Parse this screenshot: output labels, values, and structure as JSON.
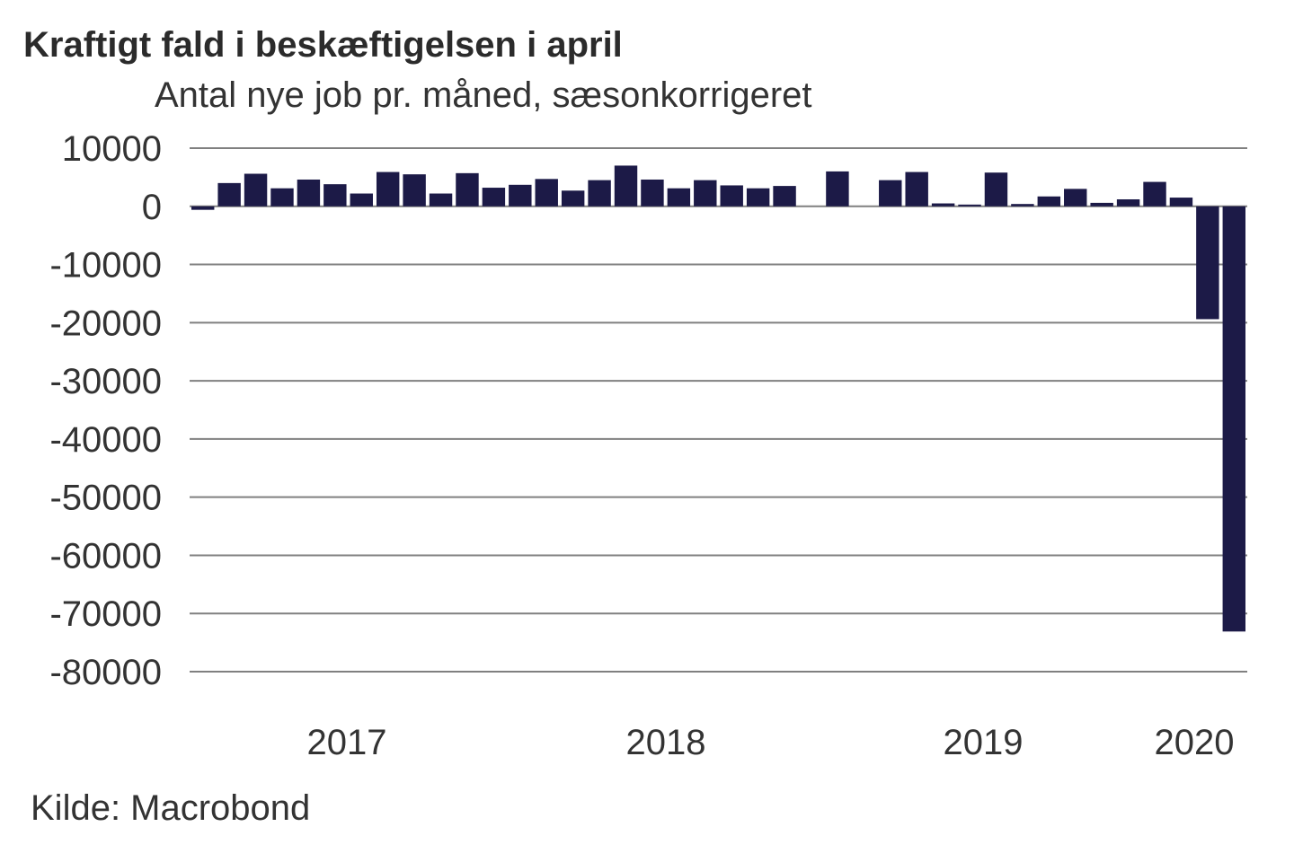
{
  "chart_data": {
    "type": "bar",
    "title": "Kraftigt fald i beskæftigelsen i april",
    "subtitle": "Antal nye job pr. måned, sæsonkorrigeret",
    "source": "Kilde: Macrobond",
    "ylim": [
      -80000,
      10000
    ],
    "yticks": [
      10000,
      0,
      -10000,
      -20000,
      -30000,
      -40000,
      -50000,
      -60000,
      -70000,
      -80000
    ],
    "ytick_labels": [
      "10000",
      "0",
      "-10000",
      "-20000",
      "-30000",
      "-40000",
      "-50000",
      "-60000",
      "-70000",
      "-80000"
    ],
    "x_tick_labels": [
      "2017",
      "2018",
      "2019",
      "2020"
    ],
    "grid": true,
    "bar_color": "#1c1a47",
    "grid_color": "#808080",
    "series": [
      {
        "values": [
          -600,
          4000,
          5600,
          3100,
          4600,
          3800,
          2200,
          5900,
          5500,
          2200,
          5700,
          3200,
          3700,
          4700,
          2700,
          4500,
          7000,
          4600,
          3100,
          4500,
          3600,
          3100,
          3500,
          0,
          6000,
          0,
          4500,
          5900,
          500,
          300,
          5800,
          400,
          1700,
          3000,
          600,
          1200,
          4200,
          1500,
          -19400,
          -73100
        ]
      }
    ]
  }
}
